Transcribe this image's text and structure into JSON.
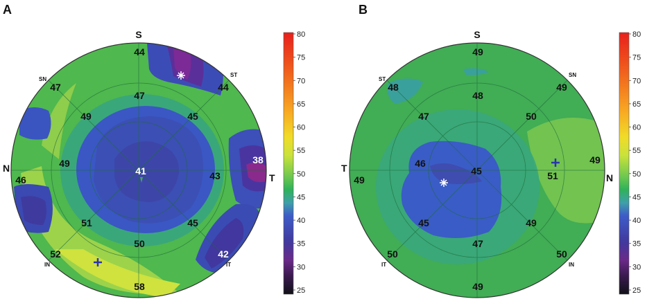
{
  "panels": [
    {
      "letter": "A",
      "directions": {
        "top": "S",
        "left": "N",
        "right": "T"
      },
      "sectors": {
        "upper_left": "SN",
        "upper_right": "ST",
        "lower_left": "IN",
        "lower_right": "IT"
      },
      "values": {
        "center": "41",
        "s_outer": "44",
        "sn_outer": "47",
        "st_outer": "44",
        "s_inner": "47",
        "sn_inner": "49",
        "st_inner": "45",
        "n_inner": "49",
        "n_outer": "46",
        "t_inner": "43",
        "t_outer": "38",
        "in_inner": "51",
        "in_outer": "52",
        "i_inner": "50",
        "i_outer": "58",
        "it_inner": "45",
        "it_outer": "42"
      }
    },
    {
      "letter": "B",
      "directions": {
        "top": "S",
        "left": "T",
        "right": "N"
      },
      "sectors": {
        "upper_left": "ST",
        "upper_right": "SN",
        "lower_left": "IT",
        "lower_right": "IN"
      },
      "values": {
        "center": "45",
        "s_outer": "49",
        "st_outer": "48",
        "sn_outer": "49",
        "s_inner": "48",
        "st_inner": "47",
        "sn_inner": "50",
        "t_inner": "46",
        "t_outer": "49",
        "n_inner": "51",
        "n_outer": "49",
        "it_inner": "45",
        "it_outer": "50",
        "i_inner": "47",
        "i_outer": "49",
        "in_inner": "49",
        "in_outer": "50"
      }
    }
  ],
  "color_scale": {
    "ticks": [
      "80",
      "75",
      "70",
      "65",
      "60",
      "55",
      "50",
      "45",
      "40",
      "35",
      "30",
      "25"
    ],
    "colors": [
      "#e8201c",
      "#ee4a1c",
      "#f3781e",
      "#f8a823",
      "#f7d426",
      "#d4e63a",
      "#9fd748",
      "#2fb25a",
      "#3d5cc8",
      "#41399e",
      "#5e2a80",
      "#3a1a4e",
      "#111118"
    ]
  }
}
